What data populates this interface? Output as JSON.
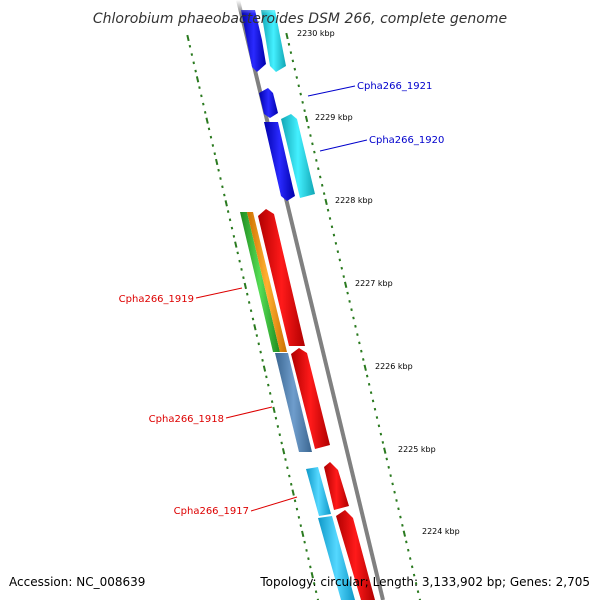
{
  "title": "Chlorobium phaeobacteroides DSM 266, complete genome",
  "accession": "Accession: NC_008639",
  "summary": "Topology: circular; Length: 3,133,902 bp; Genes: 2,705",
  "kbp_labels": [
    "2230 kbp",
    "2229 kbp",
    "2228 kbp",
    "2227 kbp",
    "2226 kbp",
    "2225 kbp",
    "2224 kbp"
  ],
  "gene_labels": [
    {
      "name": "Cpha266_1921",
      "color": "#0000cc"
    },
    {
      "name": "Cpha266_1920",
      "color": "#0000cc"
    },
    {
      "name": "Cpha266_1919",
      "color": "#dd0000"
    },
    {
      "name": "Cpha266_1918",
      "color": "#dd0000"
    },
    {
      "name": "Cpha266_1917",
      "color": "#dd0000"
    }
  ],
  "colors": {
    "backbone": "#808080",
    "tick": "#2a7a1f",
    "blue_gene": "#1010e0",
    "cyan_gene": "#20d8e8",
    "red_gene": "#ee0000",
    "green_gene": "#33bb33",
    "orange_gene": "#ff9900",
    "steelblue_gene": "#4f7fb0",
    "skyblue_gene": "#22bbee"
  }
}
